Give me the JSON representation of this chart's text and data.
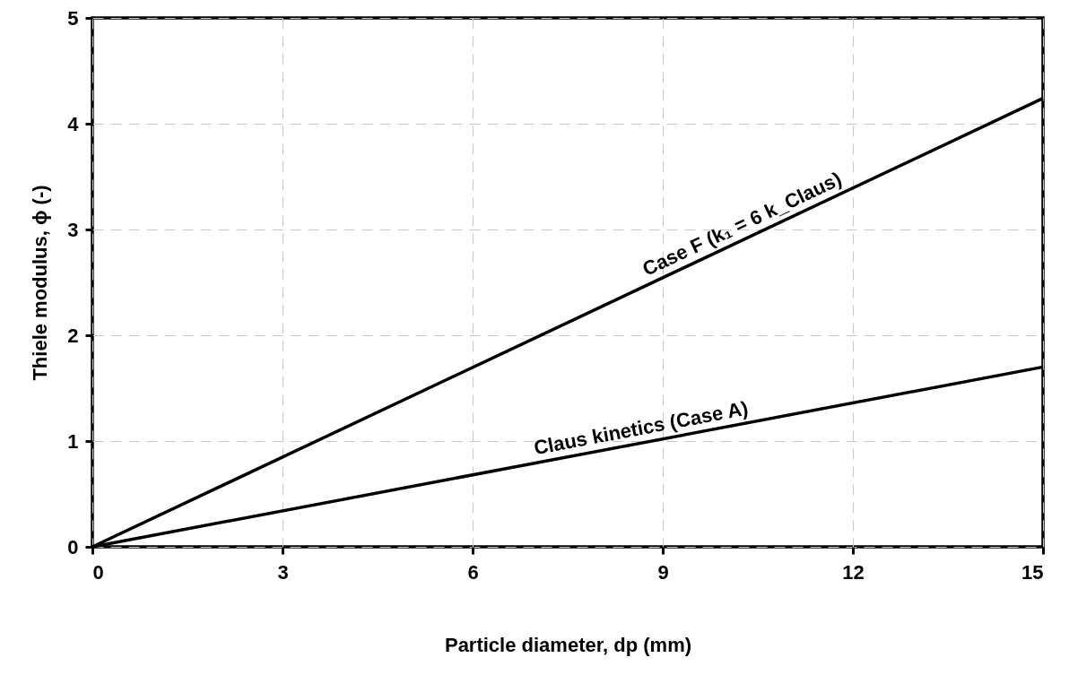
{
  "chart_data": {
    "type": "line",
    "xlabel": "Particle diameter, dp (mm)",
    "ylabel": "Thiele modulus, ϕ (-)",
    "xlim": [
      0,
      15
    ],
    "xticks": [
      0,
      3,
      6,
      9,
      12,
      15
    ],
    "ylim": [
      0,
      5
    ],
    "yticks": [
      0,
      1,
      2,
      3,
      4,
      5
    ],
    "grid": true,
    "line_style": "solid",
    "x": [
      0,
      15
    ],
    "series": [
      {
        "name": "Case F (k₁ = 6 k_Claus)",
        "color": "#000000",
        "values": [
          0,
          4.24
        ]
      },
      {
        "name": "Claus kinetics (Case A)",
        "color": "#000000",
        "values": [
          0,
          1.7
        ]
      }
    ]
  }
}
